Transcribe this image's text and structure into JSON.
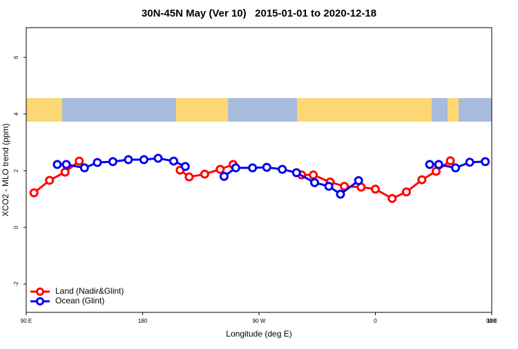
{
  "chart_data": {
    "type": "line",
    "title": "30N-45N May (Ver 10)   2015-01-01 to 2020-12-18",
    "xlabel": "Longitude (deg E)",
    "ylabel": "XCO2 - MLO trend (ppm)",
    "xlim": [
      90,
      450
    ],
    "ylim": [
      -3,
      7.05
    ],
    "xticks": [
      {
        "value": 90,
        "label": "90 E"
      },
      180,
      {
        "value": 270,
        "label": "90 W"
      },
      {
        "value": 360,
        "label": "0"
      },
      {
        "value": 450,
        "label": "90 E"
      },
      {
        "value": 540,
        "label": "180"
      }
    ],
    "yticks": [
      -2,
      0,
      2,
      4,
      6
    ],
    "legend": "bottom-left",
    "series": [
      {
        "name": "Land (Nadir&Glint)",
        "color": "#ff0000",
        "x": [
          96,
          108,
          120,
          131,
          null,
          209,
          216,
          228,
          240,
          250,
          null,
          303,
          312,
          325,
          336,
          349,
          360,
          373,
          384,
          396,
          407,
          418
        ],
        "values": [
          1.22,
          1.66,
          1.95,
          2.34,
          null,
          2.02,
          1.78,
          1.88,
          2.05,
          2.22,
          null,
          1.85,
          1.85,
          1.6,
          1.45,
          1.42,
          1.35,
          1.02,
          1.25,
          1.68,
          1.98,
          2.35
        ]
      },
      {
        "name": "Ocean (Glint)",
        "color": "#0000ee",
        "x": [
          114,
          121,
          135,
          145,
          157,
          169,
          181,
          192,
          204,
          213,
          null,
          243,
          252,
          265,
          276,
          288,
          299,
          313,
          324,
          333,
          347,
          null,
          402,
          409,
          422,
          433,
          445
        ],
        "values": [
          2.22,
          2.22,
          2.1,
          2.29,
          2.32,
          2.39,
          2.39,
          2.44,
          2.34,
          2.15,
          null,
          1.8,
          2.1,
          2.1,
          2.12,
          2.05,
          1.93,
          1.58,
          1.45,
          1.17,
          1.65,
          null,
          2.22,
          2.22,
          2.1,
          2.3,
          2.32
        ]
      }
    ]
  }
}
